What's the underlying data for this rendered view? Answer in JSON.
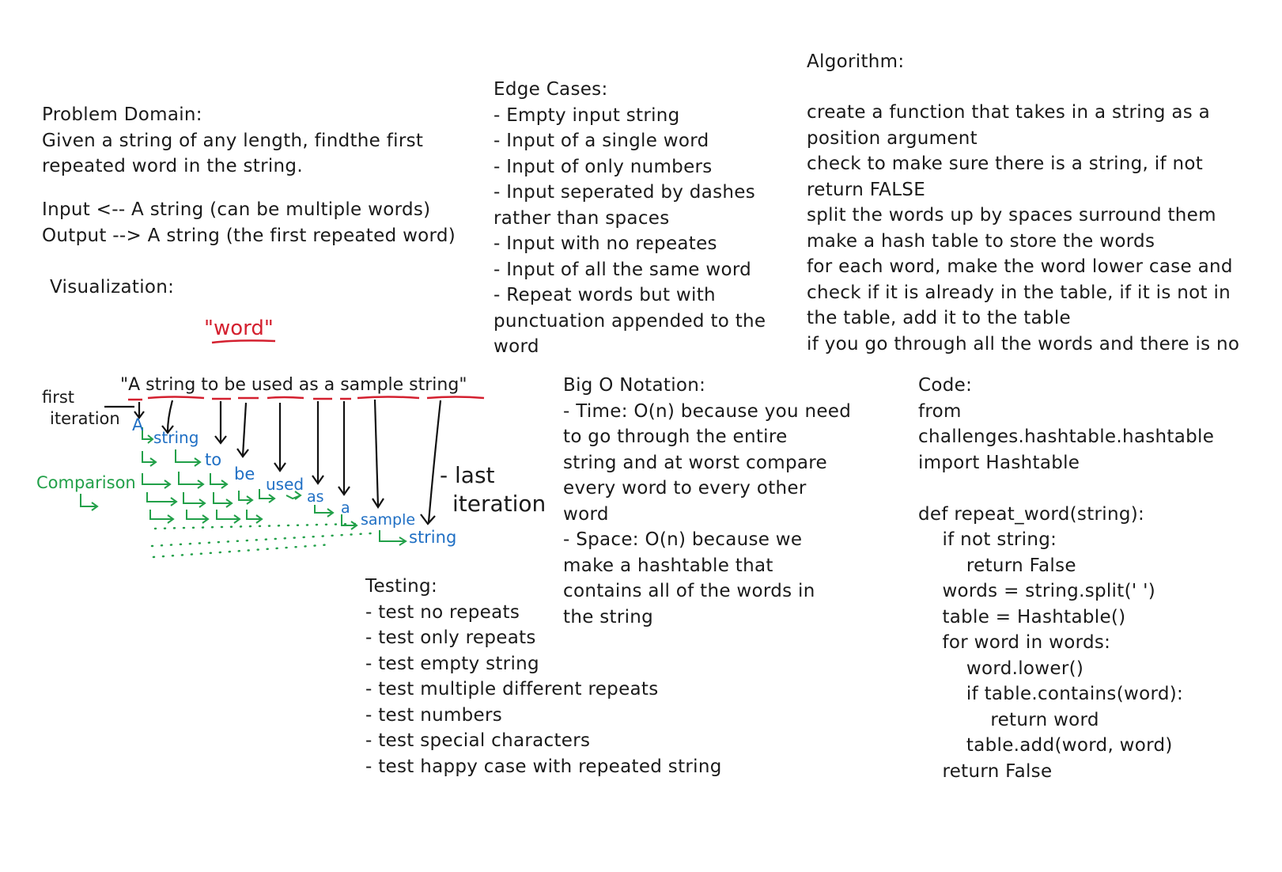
{
  "problem_domain": {
    "heading": "Problem Domain:",
    "lines": [
      "Given a string of any length, findthe first",
      "repeated word in the string."
    ]
  },
  "io": {
    "input": "Input <-- A string (can be multiple words)",
    "output": "Output --> A string (the first repeated word)"
  },
  "edge_cases": {
    "heading": "Edge Cases:",
    "lines": [
      "- Empty input string",
      "- Input of a single word",
      "- Input of only numbers",
      "- Input seperated by dashes",
      "rather than spaces",
      "- Input with no repeates",
      "- Input of all the same word",
      "- Repeat words but with",
      "punctuation appended to the",
      "word"
    ]
  },
  "algorithm": {
    "heading": "Algorithm:",
    "lines": [
      "create a function that takes in a string as a",
      "position argument",
      "check to make sure there is a string, if not",
      "return FALSE",
      "split the words up by spaces surround them",
      "make a hash table to store the words",
      "for each word, make the word lower case and",
      "check if it is already in the table, if it is not in",
      "the table, add it to the table",
      "if you go through all the words and there is no"
    ]
  },
  "visualization": {
    "heading": "Visualization:",
    "highlight_word": "\"word\"",
    "sample": "\"A string to be used as a sample string\"",
    "first_iteration": [
      "first",
      "iteration"
    ],
    "last_iteration": [
      "- last",
      "iteration"
    ],
    "comparison_label": "Comparison",
    "words": [
      "A",
      "string",
      "to",
      "be",
      "used",
      "as",
      "a",
      "sample",
      "string"
    ],
    "colors": {
      "words": "#1f6fc4",
      "comparison": "#22a049",
      "underline": "#d4202f"
    }
  },
  "big_o": {
    "heading": "Big O Notation:",
    "lines": [
      "- Time: O(n) because you need",
      "to go through the entire",
      "string and at worst compare",
      "every word to every other",
      "word",
      "- Space: O(n) because we",
      "make a hashtable that",
      "contains all of the words in",
      "the string"
    ]
  },
  "testing": {
    "heading": "Testing:",
    "lines": [
      "- test no repeats",
      "- test only repeats",
      "- test empty string",
      "- test multiple different repeats",
      "- test numbers",
      "- test special characters",
      "- test happy case with repeated string"
    ]
  },
  "code": {
    "heading": "Code:",
    "lines": [
      "from",
      "challenges.hashtable.hashtable",
      "import Hashtable",
      "",
      "def repeat_word(string):",
      "    if not string:",
      "        return False",
      "    words = string.split(' ')",
      "    table = Hashtable()",
      "    for word in words:",
      "        word.lower()",
      "        if table.contains(word):",
      "            return word",
      "        table.add(word, word)",
      "    return False"
    ]
  }
}
